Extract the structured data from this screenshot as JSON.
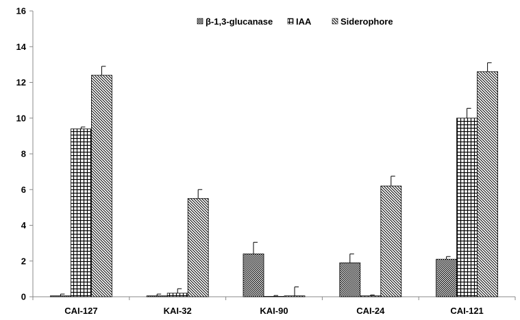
{
  "chart_data": {
    "type": "bar",
    "categories": [
      "CAI-127",
      "KAI-32",
      "KAI-90",
      "CAI-24",
      "CAI-121"
    ],
    "series": [
      {
        "name": "β-1,3-glucanase",
        "pattern": "crosshatch-fine",
        "values": [
          0.05,
          0.05,
          2.4,
          1.9,
          2.1
        ],
        "errors": [
          0.1,
          0.1,
          0.65,
          0.5,
          0.15
        ]
      },
      {
        "name": "IAA",
        "pattern": "grid",
        "values": [
          9.4,
          0.2,
          0.02,
          0.05,
          10.0
        ],
        "errors": [
          0.1,
          0.25,
          0.05,
          0.05,
          0.55
        ]
      },
      {
        "name": "Siderophore",
        "pattern": "diagonal",
        "values": [
          12.4,
          5.5,
          0.05,
          6.2,
          12.6
        ],
        "errors": [
          0.5,
          0.5,
          0.5,
          0.55,
          0.5
        ]
      }
    ],
    "yticks": [
      "0",
      "2",
      "4",
      "6",
      "8",
      "10",
      "12",
      "14",
      "16"
    ],
    "ylim": [
      0,
      16
    ],
    "legend_position": "top",
    "grid": false,
    "colors": {
      "bar_stroke": "#000000",
      "axis": "#888888",
      "pattern": "#000000"
    }
  }
}
